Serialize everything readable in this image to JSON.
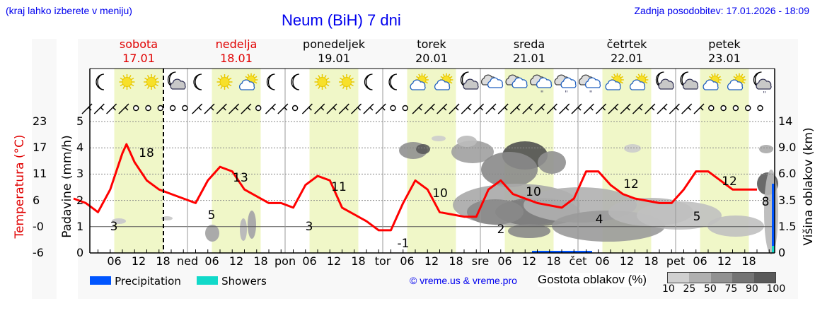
{
  "header": {
    "menu_hint": "(kraj lahko izberete v meniju)",
    "title": "Neum (BiH) 7 dni",
    "last_update": "Zadnja posodobitev: 17.01.2026 - 18:09"
  },
  "days": [
    {
      "name": "sobota",
      "date": "17.01",
      "weekend": true,
      "abbr": ""
    },
    {
      "name": "nedelja",
      "date": "18.01",
      "weekend": true,
      "abbr": "ned"
    },
    {
      "name": "ponedeljek",
      "date": "19.01",
      "weekend": false,
      "abbr": "pon"
    },
    {
      "name": "torek",
      "date": "20.01",
      "weekend": false,
      "abbr": "tor"
    },
    {
      "name": "sreda",
      "date": "21.01",
      "weekend": false,
      "abbr": "sre"
    },
    {
      "name": "četrtek",
      "date": "22.01",
      "weekend": false,
      "abbr": "čet"
    },
    {
      "name": "petek",
      "date": "23.01",
      "weekend": false,
      "abbr": "pet"
    }
  ],
  "axes": {
    "left_temp_label": "Temperatura (°C)",
    "left_temp_ticks": [
      "23",
      "17",
      "11",
      "6",
      "-0",
      "-6"
    ],
    "left_precip_label": "Padavine (mm/h)",
    "left_precip_ticks": [
      "5",
      "4",
      "3",
      "2",
      "1",
      "0"
    ],
    "right_label": "Višina oblakov (km)",
    "right_ticks": [
      "14",
      "9.0",
      "6.0",
      "3.5",
      "1.5",
      "0"
    ],
    "hour_ticks": [
      "06",
      "12",
      "18"
    ]
  },
  "legend": {
    "precipitation": {
      "label": "Precipitation",
      "color": "#0055ff"
    },
    "showers": {
      "label": "Showers",
      "color": "#11d9c9"
    },
    "credit": "© vreme.us & vreme.pro",
    "cloud_density_title": "Gostota oblakov (%)",
    "cloud_density_ticks": [
      "10",
      "25",
      "50",
      "75",
      "90",
      "100"
    ],
    "cloud_density_colors": [
      "#d0d0d0",
      "#b0b0b0",
      "#919191",
      "#747474",
      "#5a5a5a"
    ]
  },
  "colors": {
    "temperature_line": "#ff0000",
    "daytime_band": "#f0f7c8",
    "weekend_text": "#e00000"
  },
  "weather_icons": [
    "moon",
    "sun",
    "sun",
    "moon-cloud",
    "moon",
    "sun",
    "sun-cloud",
    "moon",
    "moon",
    "sun",
    "sun",
    "moon",
    "moon",
    "sun-cloud",
    "sun-cloud",
    "moon-cloud",
    "cloud",
    "cloud",
    "cloud-rain",
    "cloud-rain",
    "cloud-rain",
    "sun-cloud",
    "sun-cloud",
    "moon-cloud",
    "moon-cloud",
    "sun-cloud",
    "sun-cloud",
    "moon-cloud-rain"
  ],
  "chart_data": {
    "type": "line",
    "title": "Neum (BiH) 7 dni",
    "xlabel": "",
    "ylabel": "Temperatura (°C)",
    "x_range": [
      "17.01 00:00",
      "24.01 00:00"
    ],
    "ylim_temperature": [
      -6,
      23
    ],
    "ylim_precip": [
      0,
      5
    ],
    "grid": true,
    "series": [
      {
        "name": "Temperature (°C)",
        "x_hours": [
          0,
          3,
          6,
          9,
          12,
          13,
          15,
          18,
          21,
          24,
          30,
          33,
          36,
          39,
          42,
          48,
          51,
          54,
          57,
          60,
          63,
          66,
          72,
          75,
          78,
          81,
          84,
          87,
          90,
          96,
          99,
          102,
          105,
          108,
          111,
          114,
          120,
          123,
          126,
          129,
          132,
          135,
          138,
          144,
          147,
          150,
          153,
          156,
          159,
          162,
          165,
          168
        ],
        "values": [
          6,
          5,
          3,
          8,
          16,
          18,
          14,
          10,
          8,
          7,
          5,
          10,
          13,
          12,
          8,
          5,
          5,
          4,
          9,
          11,
          10,
          4,
          1,
          -1,
          -1,
          5,
          10,
          8,
          3,
          2,
          2,
          8,
          10,
          7,
          6,
          5,
          4,
          6,
          12,
          12,
          9,
          7,
          6,
          5,
          5,
          8,
          12,
          12,
          10,
          8,
          8,
          8
        ]
      },
      {
        "name": "Daily extremes (labels)",
        "labels": [
          {
            "day": "17.01",
            "min": 3,
            "max": 18
          },
          {
            "day": "18.01",
            "min": 5,
            "max": 13
          },
          {
            "day": "19.01",
            "min": 3,
            "max": 11
          },
          {
            "day": "20.01",
            "min": -1,
            "max": 10
          },
          {
            "day": "21.01",
            "min": 2,
            "max": 10
          },
          {
            "day": "22.01",
            "min": 4,
            "max": 12
          },
          {
            "day": "23.01",
            "min": 5,
            "max": 12
          },
          {
            "day": "24.01",
            "min": 8
          }
        ]
      },
      {
        "name": "Precipitation (mm/h)",
        "values_note": "trace amounts only (~0.05 mm/h around 21.01 12–18h, showers at end 23.01)"
      }
    ],
    "legend": [
      "Precipitation",
      "Showers",
      "Gostota oblakov (%)"
    ],
    "legend_position": "bottom"
  }
}
